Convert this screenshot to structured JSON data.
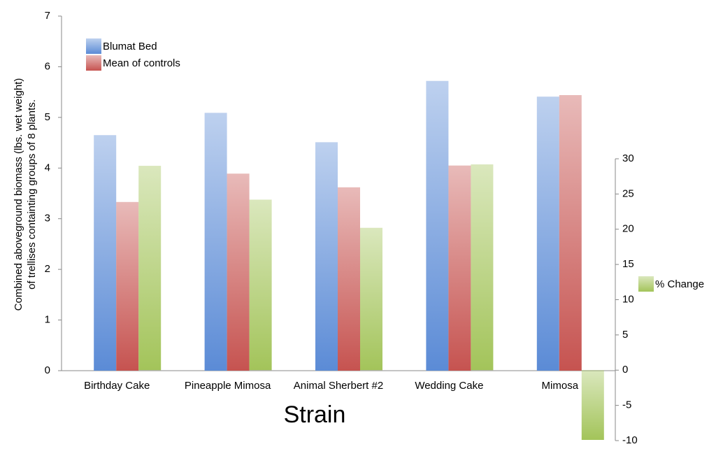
{
  "chart_data": {
    "type": "bar",
    "categories": [
      "Birthday Cake",
      "Pineapple Mimosa",
      "Animal Sherbert #2",
      "Wedding Cake",
      "Mimosa"
    ],
    "series": [
      {
        "name": "Blumat Bed",
        "color": "#5b8bd6",
        "values": [
          4.65,
          5.09,
          4.51,
          5.72,
          5.41
        ]
      },
      {
        "name": "Mean of controls",
        "color": "#c65350",
        "values": [
          3.33,
          3.89,
          3.62,
          4.05,
          5.44
        ]
      },
      {
        "name": "% Change",
        "color": "#a3c45a",
        "axis": "y2",
        "values": [
          29.0,
          24.2,
          20.2,
          29.2,
          -9.9
        ]
      }
    ],
    "ylabel": [
      "Combined aboveground biomass (lbs. wet weight)",
      "of trellises containting groups of 8 plants."
    ],
    "xlabel": "Strain",
    "ylim": [
      0,
      7
    ],
    "yticks": [
      0,
      1,
      2,
      3,
      4,
      5,
      6,
      7
    ],
    "y2lim": [
      -10,
      30
    ],
    "y2ticks": [
      -10,
      -5,
      0,
      5,
      10,
      15,
      20,
      25,
      30
    ],
    "legend": "upper left"
  }
}
